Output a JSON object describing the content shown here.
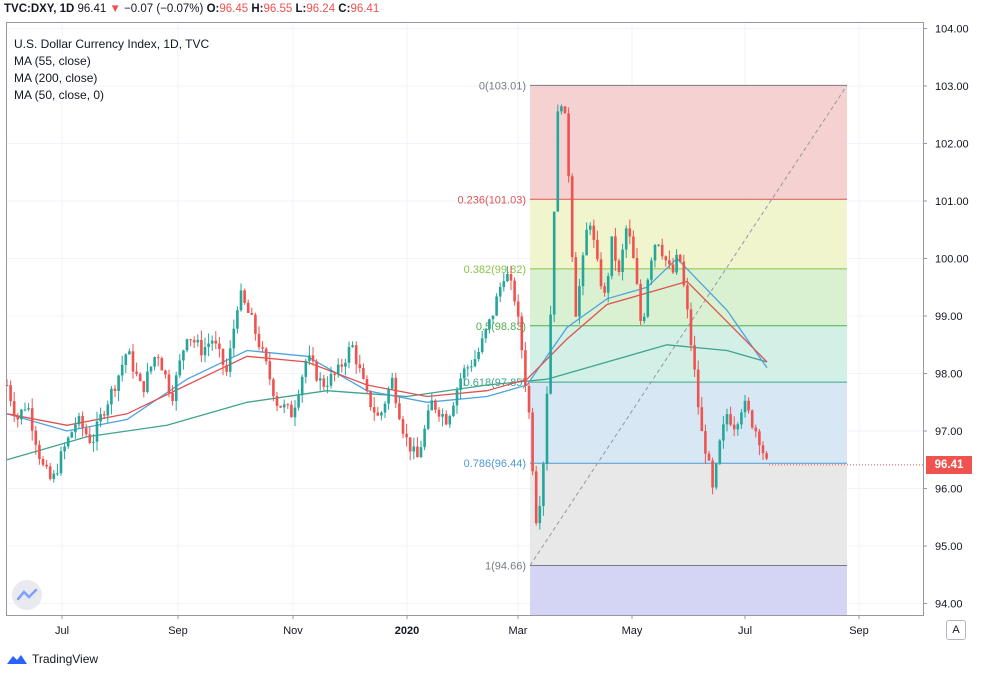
{
  "header": {
    "symbol_line": "TVC:DXY, 1D",
    "last": "96.41",
    "change": "−0.07 (−0.07%)",
    "o_label": "O:",
    "o_value": "96.45",
    "h_label": "H:",
    "h_value": "96.55",
    "l_label": "L:",
    "l_value": "96.24",
    "c_label": "C:",
    "c_value": "96.41"
  },
  "legend": {
    "title": "U.S. Dollar Currency Index, 1D, TVC",
    "ma55": "MA (55, close)",
    "ma200": "MA (200, close)",
    "ma50": "MA (50, close, 0)"
  },
  "price_tag": "96.41",
  "corner_button": "A",
  "footer": {
    "brand": "TradingView"
  },
  "colors": {
    "up": "#26a69a",
    "down": "#ef5350",
    "ma55": "#e05252",
    "ma200": "#3fa38d",
    "ma50": "#4ea3e0"
  },
  "chart_data": {
    "type": "candlestick",
    "title": "U.S. Dollar Currency Index, 1D, TVC",
    "x_axis_labels": [
      "Jul",
      "Sep",
      "Nov",
      "2020",
      "Mar",
      "May",
      "Jul",
      "Sep"
    ],
    "y_axis_labels": [
      "94.00",
      "95.00",
      "96.00",
      "97.00",
      "98.00",
      "99.00",
      "100.00",
      "101.00",
      "102.00",
      "103.00",
      "104.00"
    ],
    "ylim": [
      93.75,
      104.0
    ],
    "last_price": 96.41,
    "fibonacci": [
      {
        "level": "0",
        "price": 103.01,
        "label": "0(103.01)",
        "color": "#787b86",
        "fill": "#f4cccc"
      },
      {
        "level": "0.236",
        "price": 101.03,
        "label": "0.236(101.03)",
        "color": "#e05252",
        "fill": "#eef4c8"
      },
      {
        "level": "0.382",
        "price": 99.82,
        "label": "0.382(99.82)",
        "color": "#8bc34a",
        "fill": "#d6f0cc"
      },
      {
        "level": "0.5",
        "price": 98.83,
        "label": "0.5(98.83)",
        "color": "#4caf50",
        "fill": "#cdeee3"
      },
      {
        "level": "0.618",
        "price": 97.85,
        "label": "0.618(97.85)",
        "color": "#3fa38d",
        "fill": "#d3e6f3"
      },
      {
        "level": "0.786",
        "price": 96.44,
        "label": "0.786(96.44)",
        "color": "#4e98d6",
        "fill": "#e6e6e6"
      },
      {
        "level": "1",
        "price": 94.66,
        "label": "1(94.66)",
        "color": "#787b86",
        "fill": "#d4d4f5"
      }
    ],
    "price_path": [
      [
        0,
        97.8
      ],
      [
        10,
        97.2
      ],
      [
        20,
        97.5
      ],
      [
        35,
        96.4
      ],
      [
        45,
        96.1
      ],
      [
        55,
        96.6
      ],
      [
        70,
        97.2
      ],
      [
        85,
        96.8
      ],
      [
        95,
        97.3
      ],
      [
        110,
        97.9
      ],
      [
        120,
        98.4
      ],
      [
        135,
        97.7
      ],
      [
        150,
        98.4
      ],
      [
        165,
        97.6
      ],
      [
        180,
        98.7
      ],
      [
        195,
        98.4
      ],
      [
        205,
        98.6
      ],
      [
        220,
        98.0
      ],
      [
        232,
        99.4
      ],
      [
        245,
        98.9
      ],
      [
        258,
        98.2
      ],
      [
        270,
        97.5
      ],
      [
        285,
        97.3
      ],
      [
        300,
        98.3
      ],
      [
        315,
        97.8
      ],
      [
        330,
        98.0
      ],
      [
        345,
        98.5
      ],
      [
        360,
        97.6
      ],
      [
        372,
        97.2
      ],
      [
        385,
        97.9
      ],
      [
        398,
        96.9
      ],
      [
        410,
        96.5
      ],
      [
        425,
        97.5
      ],
      [
        440,
        97.2
      ],
      [
        455,
        98.0
      ],
      [
        470,
        98.3
      ],
      [
        485,
        99.0
      ],
      [
        498,
        99.8
      ],
      [
        508,
        99.3
      ],
      [
        515,
        98.4
      ],
      [
        522,
        97.3
      ],
      [
        530,
        95.3
      ],
      [
        537,
        96.6
      ],
      [
        544,
        99.2
      ],
      [
        550,
        102.4
      ],
      [
        556,
        102.9
      ],
      [
        562,
        101.4
      ],
      [
        568,
        99.0
      ],
      [
        575,
        99.8
      ],
      [
        582,
        100.8
      ],
      [
        590,
        99.9
      ],
      [
        598,
        99.3
      ],
      [
        605,
        100.3
      ],
      [
        612,
        99.7
      ],
      [
        620,
        100.6
      ],
      [
        628,
        99.8
      ],
      [
        635,
        98.7
      ],
      [
        642,
        99.9
      ],
      [
        650,
        100.4
      ],
      [
        658,
        100.0
      ],
      [
        665,
        99.7
      ],
      [
        672,
        100.1
      ],
      [
        680,
        99.1
      ],
      [
        687,
        98.1
      ],
      [
        694,
        97.0
      ],
      [
        700,
        96.6
      ],
      [
        706,
        95.9
      ],
      [
        712,
        96.7
      ],
      [
        720,
        97.3
      ],
      [
        728,
        97.1
      ],
      [
        736,
        97.5
      ],
      [
        744,
        97.2
      ],
      [
        752,
        96.9
      ],
      [
        760,
        96.4
      ]
    ],
    "ma55_path": [
      [
        0,
        97.3
      ],
      [
        60,
        97.1
      ],
      [
        120,
        97.3
      ],
      [
        180,
        97.8
      ],
      [
        240,
        98.3
      ],
      [
        300,
        98.2
      ],
      [
        360,
        97.8
      ],
      [
        420,
        97.6
      ],
      [
        480,
        97.7
      ],
      [
        520,
        97.9
      ],
      [
        560,
        98.6
      ],
      [
        600,
        99.2
      ],
      [
        640,
        99.4
      ],
      [
        680,
        99.6
      ],
      [
        720,
        98.9
      ],
      [
        760,
        98.2
      ]
    ],
    "ma200_path": [
      [
        0,
        96.5
      ],
      [
        80,
        96.9
      ],
      [
        160,
        97.1
      ],
      [
        240,
        97.5
      ],
      [
        320,
        97.7
      ],
      [
        400,
        97.6
      ],
      [
        480,
        97.8
      ],
      [
        540,
        97.9
      ],
      [
        600,
        98.2
      ],
      [
        660,
        98.5
      ],
      [
        720,
        98.4
      ],
      [
        760,
        98.2
      ]
    ],
    "ma50_path": [
      [
        0,
        97.3
      ],
      [
        60,
        97.0
      ],
      [
        120,
        97.2
      ],
      [
        180,
        97.9
      ],
      [
        240,
        98.4
      ],
      [
        300,
        98.3
      ],
      [
        360,
        97.7
      ],
      [
        420,
        97.5
      ],
      [
        480,
        97.6
      ],
      [
        520,
        97.8
      ],
      [
        560,
        98.8
      ],
      [
        600,
        99.3
      ],
      [
        640,
        99.5
      ],
      [
        670,
        100.0
      ],
      [
        720,
        99.1
      ],
      [
        760,
        98.1
      ]
    ]
  }
}
